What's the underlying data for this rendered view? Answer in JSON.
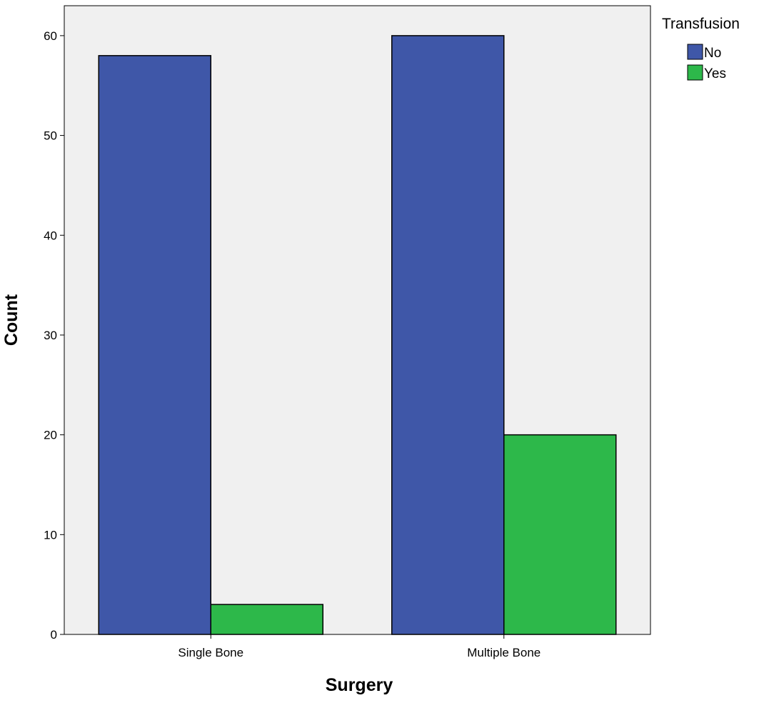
{
  "chart_data": {
    "type": "bar",
    "categories": [
      "Single Bone",
      "Multiple Bone"
    ],
    "series": [
      {
        "name": "No",
        "values": [
          58,
          60
        ],
        "color": "#3f57a8"
      },
      {
        "name": "Yes",
        "values": [
          3,
          20
        ],
        "color": "#2db84a"
      }
    ],
    "xlabel": "Surgery",
    "ylabel": "Count",
    "ylim": [
      0,
      63
    ],
    "yticks": [
      0,
      10,
      20,
      30,
      40,
      50,
      60
    ],
    "legend": {
      "title": "Transfusion",
      "position": "top-right"
    },
    "grid": false,
    "background": "#f0f0f0"
  }
}
